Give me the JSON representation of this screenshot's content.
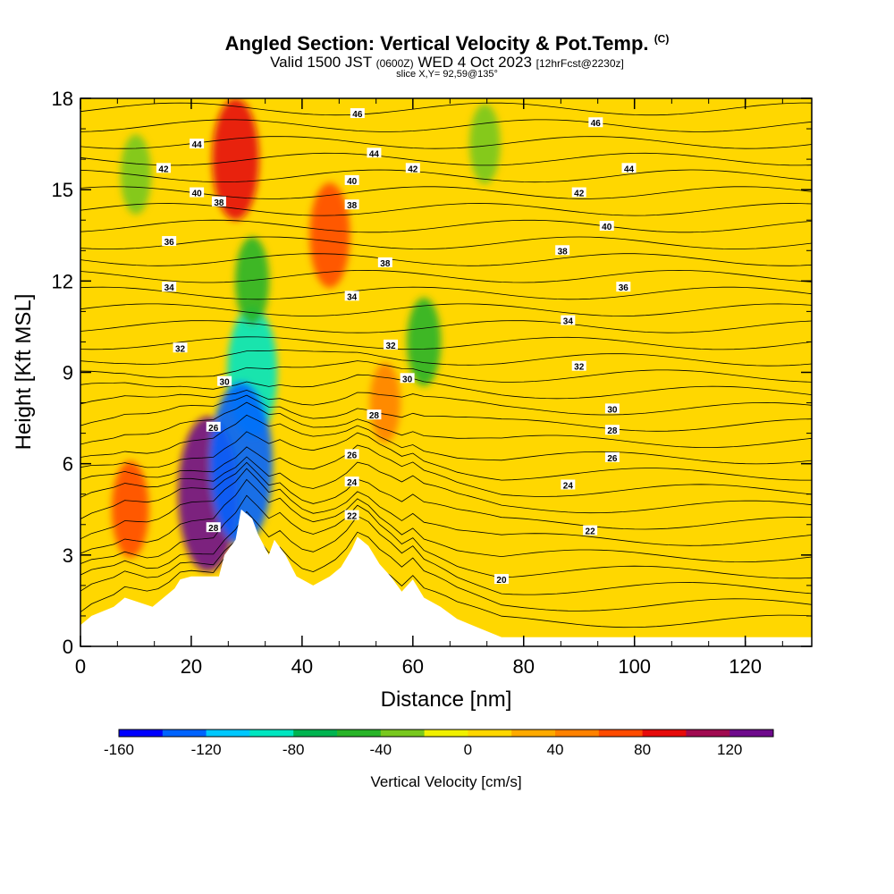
{
  "header": {
    "title": "Angled Section: Vertical Velocity & Pot.Temp.",
    "title_mark": "(C)",
    "subtitle_main": "Valid 1500 JST",
    "subtitle_utc": "(0600Z)",
    "subtitle_date": "WED 4 Oct 2023",
    "subtitle_fcst": "[12hrFcst@2230z]",
    "slice": "slice X,Y= 92,59@135°"
  },
  "chart_data": {
    "type": "heatmap",
    "xlabel": "Distance [nm]",
    "ylabel": "Height [Kft MSL]",
    "xlim": [
      0,
      132
    ],
    "ylim": [
      0,
      18
    ],
    "x_ticks": [
      0,
      20,
      40,
      60,
      80,
      100,
      120
    ],
    "y_ticks": [
      0,
      3,
      6,
      9,
      12,
      15,
      18
    ],
    "background_field": "Vertical Velocity [cm/s]",
    "colorbar": {
      "title": "Vertical Velocity [cm/s]",
      "tick_labels": [
        "-160",
        "-120",
        "-80",
        "-40",
        "0",
        "40",
        "80",
        "120"
      ],
      "levels": [
        -160,
        -140,
        -120,
        -100,
        -80,
        -60,
        -40,
        -20,
        0,
        20,
        40,
        60,
        80,
        100,
        120,
        140
      ],
      "colors": [
        "#0000ff",
        "#0064ff",
        "#00c8ff",
        "#00e6c0",
        "#00b450",
        "#28b428",
        "#78c81e",
        "#f0f000",
        "#ffd700",
        "#ffaa00",
        "#ff8200",
        "#ff4b00",
        "#e60a0a",
        "#a00a50",
        "#6e0a8c"
      ]
    },
    "features": [
      {
        "name": "updraft",
        "x": 28,
        "y": 16.0,
        "value": 90
      },
      {
        "name": "updraft",
        "x": 23,
        "y": 5.0,
        "value": 130
      },
      {
        "name": "downdraft",
        "x": 31,
        "y": 9.0,
        "value": -100
      },
      {
        "name": "downdraft",
        "x": 31,
        "y": 12.0,
        "value": -50
      },
      {
        "name": "downdraft",
        "x": 29,
        "y": 6.0,
        "value": -140
      },
      {
        "name": "updraft",
        "x": 45,
        "y": 13.5,
        "value": 70
      },
      {
        "name": "downdraft",
        "x": 62,
        "y": 10.0,
        "value": -50
      },
      {
        "name": "downdraft",
        "x": 10,
        "y": 15.5,
        "value": -40
      },
      {
        "name": "downdraft",
        "x": 73,
        "y": 16.5,
        "value": -40
      },
      {
        "name": "updraft",
        "x": 9,
        "y": 4.5,
        "value": 60
      },
      {
        "name": "updraft",
        "x": 55,
        "y": 8.0,
        "value": 40
      }
    ],
    "terrain": [
      [
        0,
        0.7
      ],
      [
        2,
        1.0
      ],
      [
        6,
        1.3
      ],
      [
        8,
        1.6
      ],
      [
        13,
        1.3
      ],
      [
        15,
        1.6
      ],
      [
        17,
        1.9
      ],
      [
        18,
        2.2
      ],
      [
        20,
        2.3
      ],
      [
        25,
        2.3
      ],
      [
        26,
        3.0
      ],
      [
        28,
        3.5
      ],
      [
        29,
        4.5
      ],
      [
        31,
        4.2
      ],
      [
        32,
        3.7
      ],
      [
        34,
        3.0
      ],
      [
        35,
        3.5
      ],
      [
        37,
        3.0
      ],
      [
        39,
        2.3
      ],
      [
        42,
        2.0
      ],
      [
        45,
        2.3
      ],
      [
        47,
        2.6
      ],
      [
        49,
        3.2
      ],
      [
        50,
        3.6
      ],
      [
        52,
        3.3
      ],
      [
        54,
        2.7
      ],
      [
        56,
        2.3
      ],
      [
        58,
        1.8
      ],
      [
        60,
        2.2
      ],
      [
        62,
        1.6
      ],
      [
        65,
        1.3
      ],
      [
        68,
        0.9
      ],
      [
        72,
        0.6
      ],
      [
        76,
        0.3
      ],
      [
        132,
        0.3
      ]
    ],
    "theta_labels": [
      {
        "text": "46",
        "x": 50,
        "y": 17.5
      },
      {
        "text": "46",
        "x": 93,
        "y": 17.2
      },
      {
        "text": "44",
        "x": 21,
        "y": 16.5
      },
      {
        "text": "44",
        "x": 53,
        "y": 16.2
      },
      {
        "text": "44",
        "x": 99,
        "y": 15.7
      },
      {
        "text": "42",
        "x": 15,
        "y": 15.7
      },
      {
        "text": "42",
        "x": 60,
        "y": 15.7
      },
      {
        "text": "42",
        "x": 90,
        "y": 14.9
      },
      {
        "text": "40",
        "x": 21,
        "y": 14.9
      },
      {
        "text": "40",
        "x": 49,
        "y": 15.3
      },
      {
        "text": "40",
        "x": 95,
        "y": 13.8
      },
      {
        "text": "38",
        "x": 25,
        "y": 14.6
      },
      {
        "text": "38",
        "x": 49,
        "y": 14.5
      },
      {
        "text": "38",
        "x": 55,
        "y": 12.6
      },
      {
        "text": "38",
        "x": 87,
        "y": 13.0
      },
      {
        "text": "36",
        "x": 16,
        "y": 13.3
      },
      {
        "text": "36",
        "x": 98,
        "y": 11.8
      },
      {
        "text": "34",
        "x": 16,
        "y": 11.8
      },
      {
        "text": "34",
        "x": 49,
        "y": 11.5
      },
      {
        "text": "34",
        "x": 88,
        "y": 10.7
      },
      {
        "text": "32",
        "x": 18,
        "y": 9.8
      },
      {
        "text": "32",
        "x": 56,
        "y": 9.9
      },
      {
        "text": "32",
        "x": 90,
        "y": 9.2
      },
      {
        "text": "30",
        "x": 26,
        "y": 8.7
      },
      {
        "text": "30",
        "x": 59,
        "y": 8.8
      },
      {
        "text": "30",
        "x": 96,
        "y": 7.8
      },
      {
        "text": "28",
        "x": 53,
        "y": 7.6
      },
      {
        "text": "28",
        "x": 96,
        "y": 7.1
      },
      {
        "text": "26",
        "x": 24,
        "y": 7.2
      },
      {
        "text": "26",
        "x": 49,
        "y": 6.3
      },
      {
        "text": "26",
        "x": 96,
        "y": 6.2
      },
      {
        "text": "24",
        "x": 49,
        "y": 5.4
      },
      {
        "text": "24",
        "x": 88,
        "y": 5.3
      },
      {
        "text": "22",
        "x": 49,
        "y": 4.3
      },
      {
        "text": "22",
        "x": 92,
        "y": 3.8
      },
      {
        "text": "28",
        "x": 24,
        "y": 3.9
      },
      {
        "text": "20",
        "x": 76,
        "y": 2.2
      }
    ]
  }
}
